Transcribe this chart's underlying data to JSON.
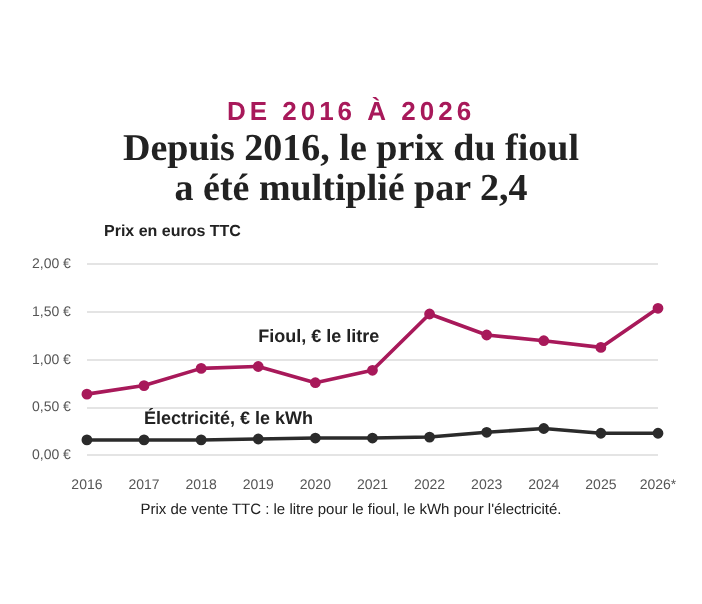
{
  "chart_data": {
    "type": "line",
    "subtitle": "DE 2016 À 2026",
    "title": "Depuis 2016, le prix du fioul a été multiplié par 2,4",
    "ylabel": "Prix en euros TTC",
    "categories": [
      "2016",
      "2017",
      "2018",
      "2019",
      "2020",
      "2021",
      "2022",
      "2023",
      "2024",
      "2025",
      "2026*"
    ],
    "series": [
      {
        "name": "Fioul, € le litre",
        "color": "#a8195a",
        "values": [
          0.64,
          0.73,
          0.91,
          0.93,
          0.76,
          0.89,
          1.48,
          1.26,
          1.2,
          1.13,
          1.54
        ]
      },
      {
        "name": "Électricité, € le kWh",
        "color": "#2b2b2b",
        "values": [
          0.16,
          0.16,
          0.16,
          0.17,
          0.18,
          0.18,
          0.19,
          0.24,
          0.28,
          0.23,
          0.23
        ]
      }
    ],
    "ylim": [
      0,
      2
    ],
    "yticks": [
      {
        "value": 0,
        "label": "0,00 €"
      },
      {
        "value": 0.5,
        "label": "0,50 €"
      },
      {
        "value": 1,
        "label": "1,00 €"
      },
      {
        "value": 1.5,
        "label": "1,50 €"
      },
      {
        "value": 2,
        "label": "2,00 €"
      }
    ],
    "grid": "y",
    "marker": "circle",
    "line_style": "solid",
    "legend": false,
    "annotations": [
      "Prix de vente TTC : le litre pour le fioul, le kWh pour l'électricité."
    ]
  }
}
